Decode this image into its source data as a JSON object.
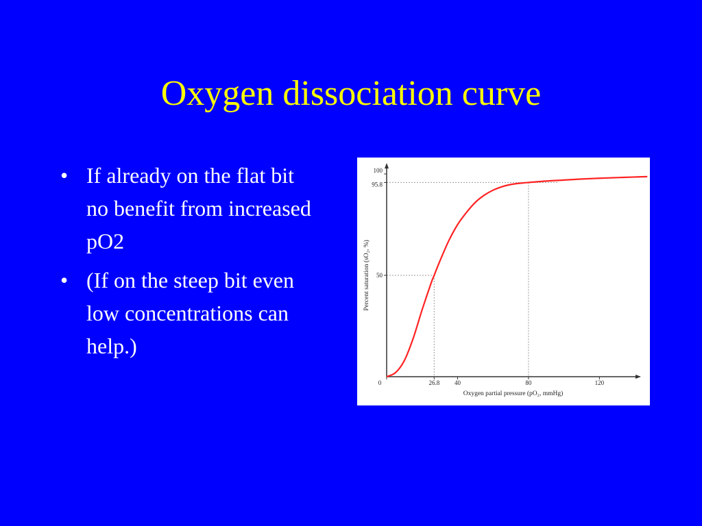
{
  "slide": {
    "title": "Oxygen dissociation curve",
    "bullets": [
      "If already on the flat bit no benefit from increased pO2",
      "(If on the steep bit even low concentrations can help.)"
    ]
  },
  "colors": {
    "background": "#0000ff",
    "title": "#ffff00",
    "body_text": "#ffffff",
    "curve": "#ff2222"
  },
  "chart_data": {
    "type": "line",
    "title": "",
    "xlabel": "Oxygen partial pressure (pO₂, mmHg)",
    "ylabel": "Percent saturation (sO₂, %)",
    "xlim": [
      0,
      150
    ],
    "ylim": [
      0,
      100
    ],
    "x_ticks": [
      0,
      26.8,
      40,
      80,
      120
    ],
    "y_ticks": [
      50,
      95.8,
      100
    ],
    "x_tick_labels": [
      "0",
      "26.8",
      "40",
      "80",
      "120"
    ],
    "y_tick_labels": [
      "50",
      "95.8",
      "100"
    ],
    "reference_lines": [
      {
        "x": 26.8,
        "y": 50
      },
      {
        "x": 80,
        "y": 95.8
      }
    ],
    "grid": false,
    "series": [
      {
        "x": [
          0,
          5,
          10,
          15,
          20,
          25,
          26.8,
          30,
          35,
          40,
          45,
          50,
          55,
          60,
          65,
          70,
          75,
          80,
          90,
          100,
          110,
          120,
          130,
          140,
          147
        ],
        "values": [
          0,
          2,
          8,
          19,
          33,
          46,
          50,
          57,
          67,
          75,
          81,
          86,
          89.5,
          92,
          93.7,
          94.8,
          95.4,
          95.8,
          96.5,
          97,
          97.5,
          97.9,
          98.2,
          98.5,
          98.7
        ]
      }
    ]
  }
}
